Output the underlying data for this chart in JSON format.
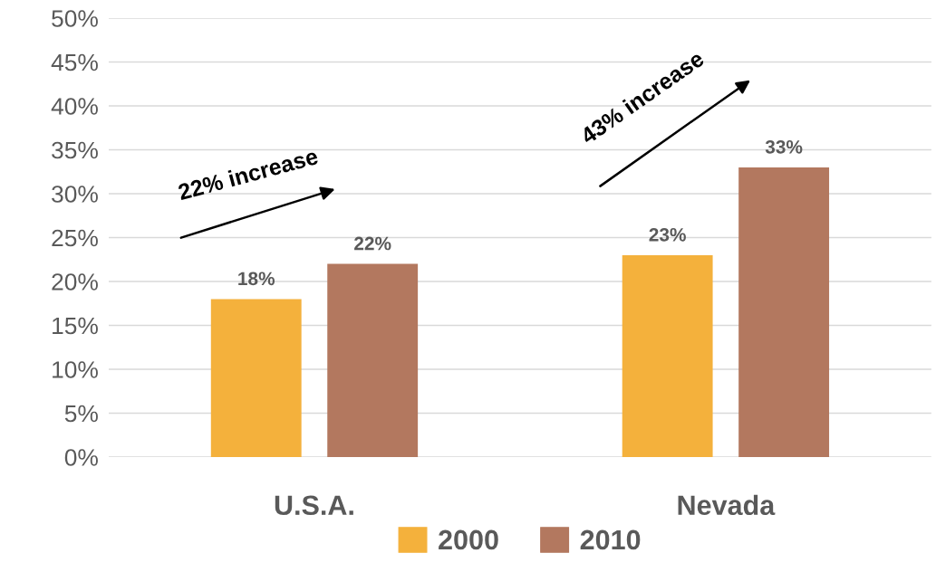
{
  "chart_data": {
    "type": "bar",
    "categories": [
      "U.S.A.",
      "Nevada"
    ],
    "series": [
      {
        "name": "2000",
        "color": "#f4b13c",
        "values": [
          18,
          23
        ],
        "value_labels": [
          "18%",
          "23%"
        ]
      },
      {
        "name": "2010",
        "color": "#b3785f",
        "values": [
          22,
          33
        ],
        "value_labels": [
          "22%",
          "33%"
        ]
      }
    ],
    "ylim": [
      0,
      50
    ],
    "yticks": [
      {
        "value": 0,
        "label": "0%"
      },
      {
        "value": 5,
        "label": "5%"
      },
      {
        "value": 10,
        "label": "10%"
      },
      {
        "value": 15,
        "label": "15%"
      },
      {
        "value": 20,
        "label": "20%"
      },
      {
        "value": 25,
        "label": "25%"
      },
      {
        "value": 30,
        "label": "30%"
      },
      {
        "value": 35,
        "label": "35%"
      },
      {
        "value": 40,
        "label": "40%"
      },
      {
        "value": 45,
        "label": "45%"
      },
      {
        "value": 50,
        "label": "50%"
      }
    ],
    "annotations": [
      "22% increase",
      "43% increase"
    ],
    "grid": "y",
    "legend": "bottom"
  }
}
